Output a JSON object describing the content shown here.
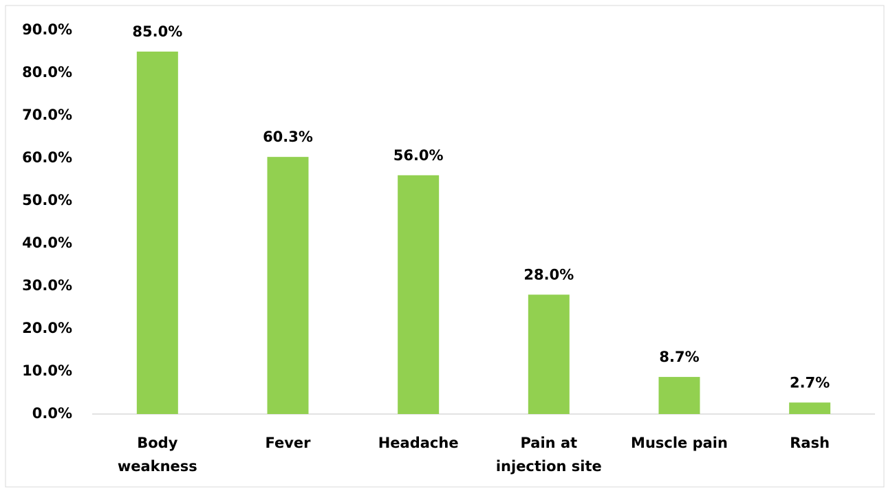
{
  "chart_data": {
    "type": "bar",
    "categories": [
      "Body\nweakness",
      "Fever",
      "Headache",
      "Pain at\ninjection site",
      "Muscle pain",
      "Rash"
    ],
    "values": [
      85.0,
      60.3,
      56.0,
      28.0,
      8.7,
      2.7
    ],
    "value_labels": [
      "85.0%",
      "60.3%",
      "56.0%",
      "28.0%",
      "8.7%",
      "2.7%"
    ],
    "color": "#92d050",
    "ylim": [
      0,
      90
    ],
    "yticks": [
      {
        "value": 0,
        "label": "0.0%"
      },
      {
        "value": 10,
        "label": "10.0%"
      },
      {
        "value": 20,
        "label": "20.0%"
      },
      {
        "value": 30,
        "label": "30.0%"
      },
      {
        "value": 40,
        "label": "40.0%"
      },
      {
        "value": 50,
        "label": "50.0%"
      },
      {
        "value": 60,
        "label": "60.0%"
      },
      {
        "value": 70,
        "label": "70.0%"
      },
      {
        "value": 80,
        "label": "80.0%"
      },
      {
        "value": 90,
        "label": "90.0%"
      }
    ],
    "grid": false
  }
}
